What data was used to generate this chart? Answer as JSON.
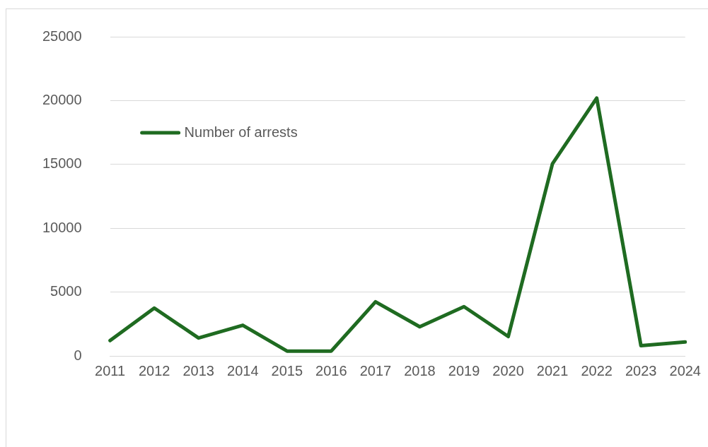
{
  "chart_data": {
    "type": "line",
    "categories": [
      "2011",
      "2012",
      "2013",
      "2014",
      "2015",
      "2016",
      "2017",
      "2018",
      "2019",
      "2020",
      "2021",
      "2022",
      "2023",
      "2024"
    ],
    "series": [
      {
        "name": "Number of arrests",
        "color": "#1f6b21",
        "values": [
          1200,
          3750,
          1400,
          2400,
          380,
          380,
          4240,
          2280,
          3860,
          1520,
          15050,
          20200,
          800,
          1090
        ]
      }
    ],
    "ylim": [
      0,
      25000
    ],
    "yticks": [
      0,
      5000,
      10000,
      15000,
      20000,
      25000
    ],
    "grid": "y",
    "legend": "top left",
    "marker": "none",
    "line_style": "solid"
  }
}
